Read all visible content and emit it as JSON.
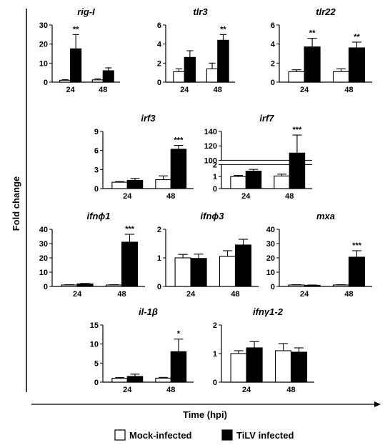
{
  "figure": {
    "ylabel": "Fold change",
    "xlabel": "Time (hpi)",
    "legend": [
      "Mock-infected",
      "TiLV infected"
    ],
    "colors": {
      "mock": "#ffffff",
      "tilv": "#000000",
      "stroke": "#000000"
    }
  },
  "chart_data": [
    {
      "type": "bar",
      "title": "rig-I",
      "categories": [
        "24",
        "48"
      ],
      "series": [
        {
          "name": "Mock-infected",
          "values": [
            1.0,
            1.2
          ],
          "errors": [
            0.3,
            0.5
          ]
        },
        {
          "name": "TiLV infected",
          "values": [
            17.5,
            6.0
          ],
          "errors": [
            7.5,
            1.5
          ]
        }
      ],
      "ylim": [
        0,
        30
      ],
      "yticks": [
        "0",
        "10",
        "20",
        "30"
      ],
      "significance": [
        "**",
        ""
      ]
    },
    {
      "type": "bar",
      "title": "tlr3",
      "categories": [
        "24",
        "48"
      ],
      "series": [
        {
          "name": "Mock-infected",
          "values": [
            1.1,
            1.4
          ],
          "errors": [
            0.3,
            0.6
          ]
        },
        {
          "name": "TiLV infected",
          "values": [
            2.6,
            4.4
          ],
          "errors": [
            0.7,
            0.6
          ]
        }
      ],
      "ylim": [
        0,
        6
      ],
      "yticks": [
        "0",
        "2",
        "4",
        "6"
      ],
      "significance": [
        "",
        "**"
      ]
    },
    {
      "type": "bar",
      "title": "tlr22",
      "categories": [
        "24",
        "48"
      ],
      "series": [
        {
          "name": "Mock-infected",
          "values": [
            1.1,
            1.1
          ],
          "errors": [
            0.2,
            0.3
          ]
        },
        {
          "name": "TiLV infected",
          "values": [
            3.7,
            3.6
          ],
          "errors": [
            0.9,
            0.6
          ]
        }
      ],
      "ylim": [
        0,
        6
      ],
      "yticks": [
        "0",
        "2",
        "4",
        "6"
      ],
      "significance": [
        "**",
        "**"
      ]
    },
    {
      "type": "bar",
      "title": "irf3",
      "categories": [
        "24",
        "48"
      ],
      "series": [
        {
          "name": "Mock-infected",
          "values": [
            1.0,
            1.4
          ],
          "errors": [
            0.1,
            0.6
          ]
        },
        {
          "name": "TiLV infected",
          "values": [
            1.3,
            6.2
          ],
          "errors": [
            0.3,
            0.6
          ]
        }
      ],
      "ylim": [
        0,
        9
      ],
      "yticks": [
        "0",
        "3",
        "6",
        "9"
      ],
      "significance": [
        "",
        "***"
      ]
    },
    {
      "type": "bar",
      "title": "irf7",
      "categories": [
        "24",
        "48"
      ],
      "series": [
        {
          "name": "Mock-infected",
          "values": [
            1.0,
            1.05
          ],
          "errors": [
            0.1,
            0.15
          ]
        },
        {
          "name": "TiLV infected",
          "values": [
            1.45,
            110
          ],
          "errors": [
            0.15,
            25
          ]
        }
      ],
      "ylim": [
        0,
        140
      ],
      "yticks": [
        "0",
        "1",
        "2",
        "100",
        "120",
        "140"
      ],
      "axis_break": [
        2,
        100
      ],
      "significance": [
        "",
        "***"
      ]
    },
    {
      "type": "bar",
      "title": "ifnϕ1",
      "categories": [
        "24",
        "48"
      ],
      "series": [
        {
          "name": "Mock-infected",
          "values": [
            1.0,
            1.0
          ],
          "errors": [
            0.2,
            0.2
          ]
        },
        {
          "name": "TiLV infected",
          "values": [
            1.8,
            31
          ],
          "errors": [
            0.3,
            5.5
          ]
        }
      ],
      "ylim": [
        0,
        40
      ],
      "yticks": [
        "0",
        "10",
        "20",
        "30",
        "40"
      ],
      "significance": [
        "",
        "***"
      ]
    },
    {
      "type": "bar",
      "title": "ifnϕ3",
      "categories": [
        "24",
        "48"
      ],
      "series": [
        {
          "name": "Mock-infected",
          "values": [
            1.0,
            1.05
          ],
          "errors": [
            0.12,
            0.2
          ]
        },
        {
          "name": "TiLV infected",
          "values": [
            0.98,
            1.45
          ],
          "errors": [
            0.15,
            0.2
          ]
        }
      ],
      "ylim": [
        0,
        2
      ],
      "yticks": [
        "0",
        "1",
        "2"
      ],
      "significance": [
        "",
        ""
      ]
    },
    {
      "type": "bar",
      "title": "mxa",
      "categories": [
        "24",
        "48"
      ],
      "series": [
        {
          "name": "Mock-infected",
          "values": [
            1.0,
            1.0
          ],
          "errors": [
            0.2,
            0.2
          ]
        },
        {
          "name": "TiLV infected",
          "values": [
            0.8,
            20.5
          ],
          "errors": [
            0.2,
            4.5
          ]
        }
      ],
      "ylim": [
        0,
        40
      ],
      "yticks": [
        "0",
        "10",
        "20",
        "30",
        "40"
      ],
      "significance": [
        "",
        "***"
      ]
    },
    {
      "type": "bar",
      "title": "il-1β",
      "categories": [
        "24",
        "48"
      ],
      "series": [
        {
          "name": "Mock-infected",
          "values": [
            1.0,
            1.05
          ],
          "errors": [
            0.2,
            0.2
          ]
        },
        {
          "name": "TiLV infected",
          "values": [
            1.5,
            8.0
          ],
          "errors": [
            0.6,
            3.3
          ]
        }
      ],
      "ylim": [
        0,
        15
      ],
      "yticks": [
        "0",
        "5",
        "10",
        "15"
      ],
      "significance": [
        "",
        "*"
      ]
    },
    {
      "type": "bar",
      "title": "ifnγ1-2",
      "categories": [
        "24",
        "48"
      ],
      "series": [
        {
          "name": "Mock-infected",
          "values": [
            1.0,
            1.1
          ],
          "errors": [
            0.1,
            0.25
          ]
        },
        {
          "name": "TiLV infected",
          "values": [
            1.2,
            1.05
          ],
          "errors": [
            0.22,
            0.15
          ]
        }
      ],
      "ylim": [
        0,
        2
      ],
      "yticks": [
        "0",
        "1",
        "2"
      ],
      "significance": [
        "",
        ""
      ]
    }
  ]
}
